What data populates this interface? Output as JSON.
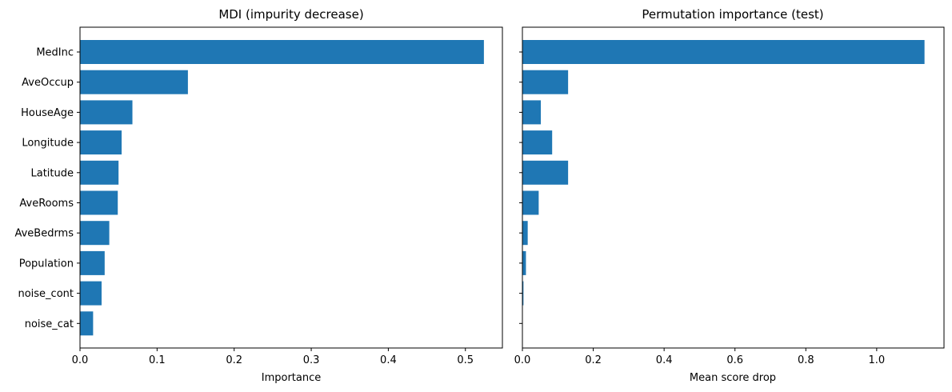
{
  "chart_data": [
    {
      "type": "bar",
      "orientation": "horizontal",
      "title": "MDI (impurity decrease)",
      "xlabel": "Importance",
      "ylabel": "",
      "categories": [
        "MedInc",
        "AveOccup",
        "HouseAge",
        "Longitude",
        "Latitude",
        "AveRooms",
        "AveBedrms",
        "Population",
        "noise_cont",
        "noise_cat"
      ],
      "values": [
        0.524,
        0.14,
        0.068,
        0.054,
        0.05,
        0.049,
        0.038,
        0.032,
        0.028,
        0.017
      ],
      "xlim": [
        0,
        0.548
      ],
      "xticks": [
        "0.0",
        "0.1",
        "0.2",
        "0.3",
        "0.4",
        "0.5"
      ],
      "xtick_values": [
        0,
        0.1,
        0.2,
        0.3,
        0.4,
        0.5
      ],
      "grid": false,
      "bar_color": "#1f77b4"
    },
    {
      "type": "bar",
      "orientation": "horizontal",
      "title": "Permutation importance (test)",
      "xlabel": "Mean score drop",
      "ylabel": "",
      "categories": [
        "MedInc",
        "AveOccup",
        "HouseAge",
        "Longitude",
        "Latitude",
        "AveRooms",
        "AveBedrms",
        "Population",
        "noise_cont",
        "noise_cat"
      ],
      "values": [
        1.135,
        0.129,
        0.052,
        0.084,
        0.129,
        0.046,
        0.015,
        0.01,
        0.003,
        0.0
      ],
      "xlim": [
        0,
        1.19
      ],
      "xticks": [
        "0.0",
        "0.2",
        "0.4",
        "0.6",
        "0.8",
        "1.0"
      ],
      "xtick_values": [
        0,
        0.2,
        0.4,
        0.6,
        0.8,
        1.0
      ],
      "grid": false,
      "show_category_labels": false,
      "bar_color": "#1f77b4"
    }
  ]
}
